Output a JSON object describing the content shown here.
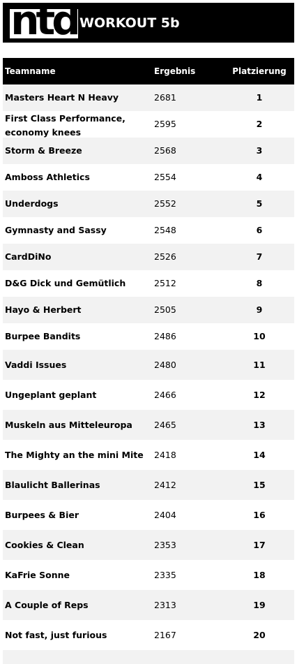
{
  "header": {
    "logo_text": "ntd",
    "title": "WORKOUT 5b"
  },
  "table": {
    "columns": [
      "Teamname",
      "Ergebnis",
      "Platzierung"
    ],
    "rows": [
      {
        "name": "Masters Heart N Heavy",
        "score": "2681",
        "rank": "1"
      },
      {
        "name": "First Class Performance, economy knees",
        "score": "2595",
        "rank": "2"
      },
      {
        "name": "Storm & Breeze",
        "score": "2568",
        "rank": "3"
      },
      {
        "name": "Amboss Athletics",
        "score": "2554",
        "rank": "4"
      },
      {
        "name": "Underdogs",
        "score": "2552",
        "rank": "5"
      },
      {
        "name": "Gymnasty and Sassy",
        "score": "2548",
        "rank": "6"
      },
      {
        "name": "CardDiNo",
        "score": "2526",
        "rank": "7"
      },
      {
        "name": "D&G Dick und Gemütlich",
        "score": "2512",
        "rank": "8"
      },
      {
        "name": "Hayo & Herbert",
        "score": "2505",
        "rank": "9"
      },
      {
        "name": "Burpee Bandits",
        "score": "2486",
        "rank": "10"
      },
      {
        "name": "Vaddi Issues",
        "score": "2480",
        "rank": "11"
      },
      {
        "name": "Ungeplant geplant",
        "score": "2466",
        "rank": "12"
      },
      {
        "name": "Muskeln aus Mitteleuropa",
        "score": "2465",
        "rank": "13"
      },
      {
        "name": "The Mighty an the mini Mite",
        "score": "2418",
        "rank": "14"
      },
      {
        "name": "Blaulicht Ballerinas",
        "score": "2412",
        "rank": "15"
      },
      {
        "name": "Burpees & Bier",
        "score": "2404",
        "rank": "16"
      },
      {
        "name": "Cookies & Clean",
        "score": "2353",
        "rank": "17"
      },
      {
        "name": "KaFrie Sonne",
        "score": "2335",
        "rank": "18"
      },
      {
        "name": "A Couple of Reps",
        "score": "2313",
        "rank": "19"
      },
      {
        "name": "Not fast, just furious",
        "score": "2167",
        "rank": "20"
      }
    ]
  }
}
